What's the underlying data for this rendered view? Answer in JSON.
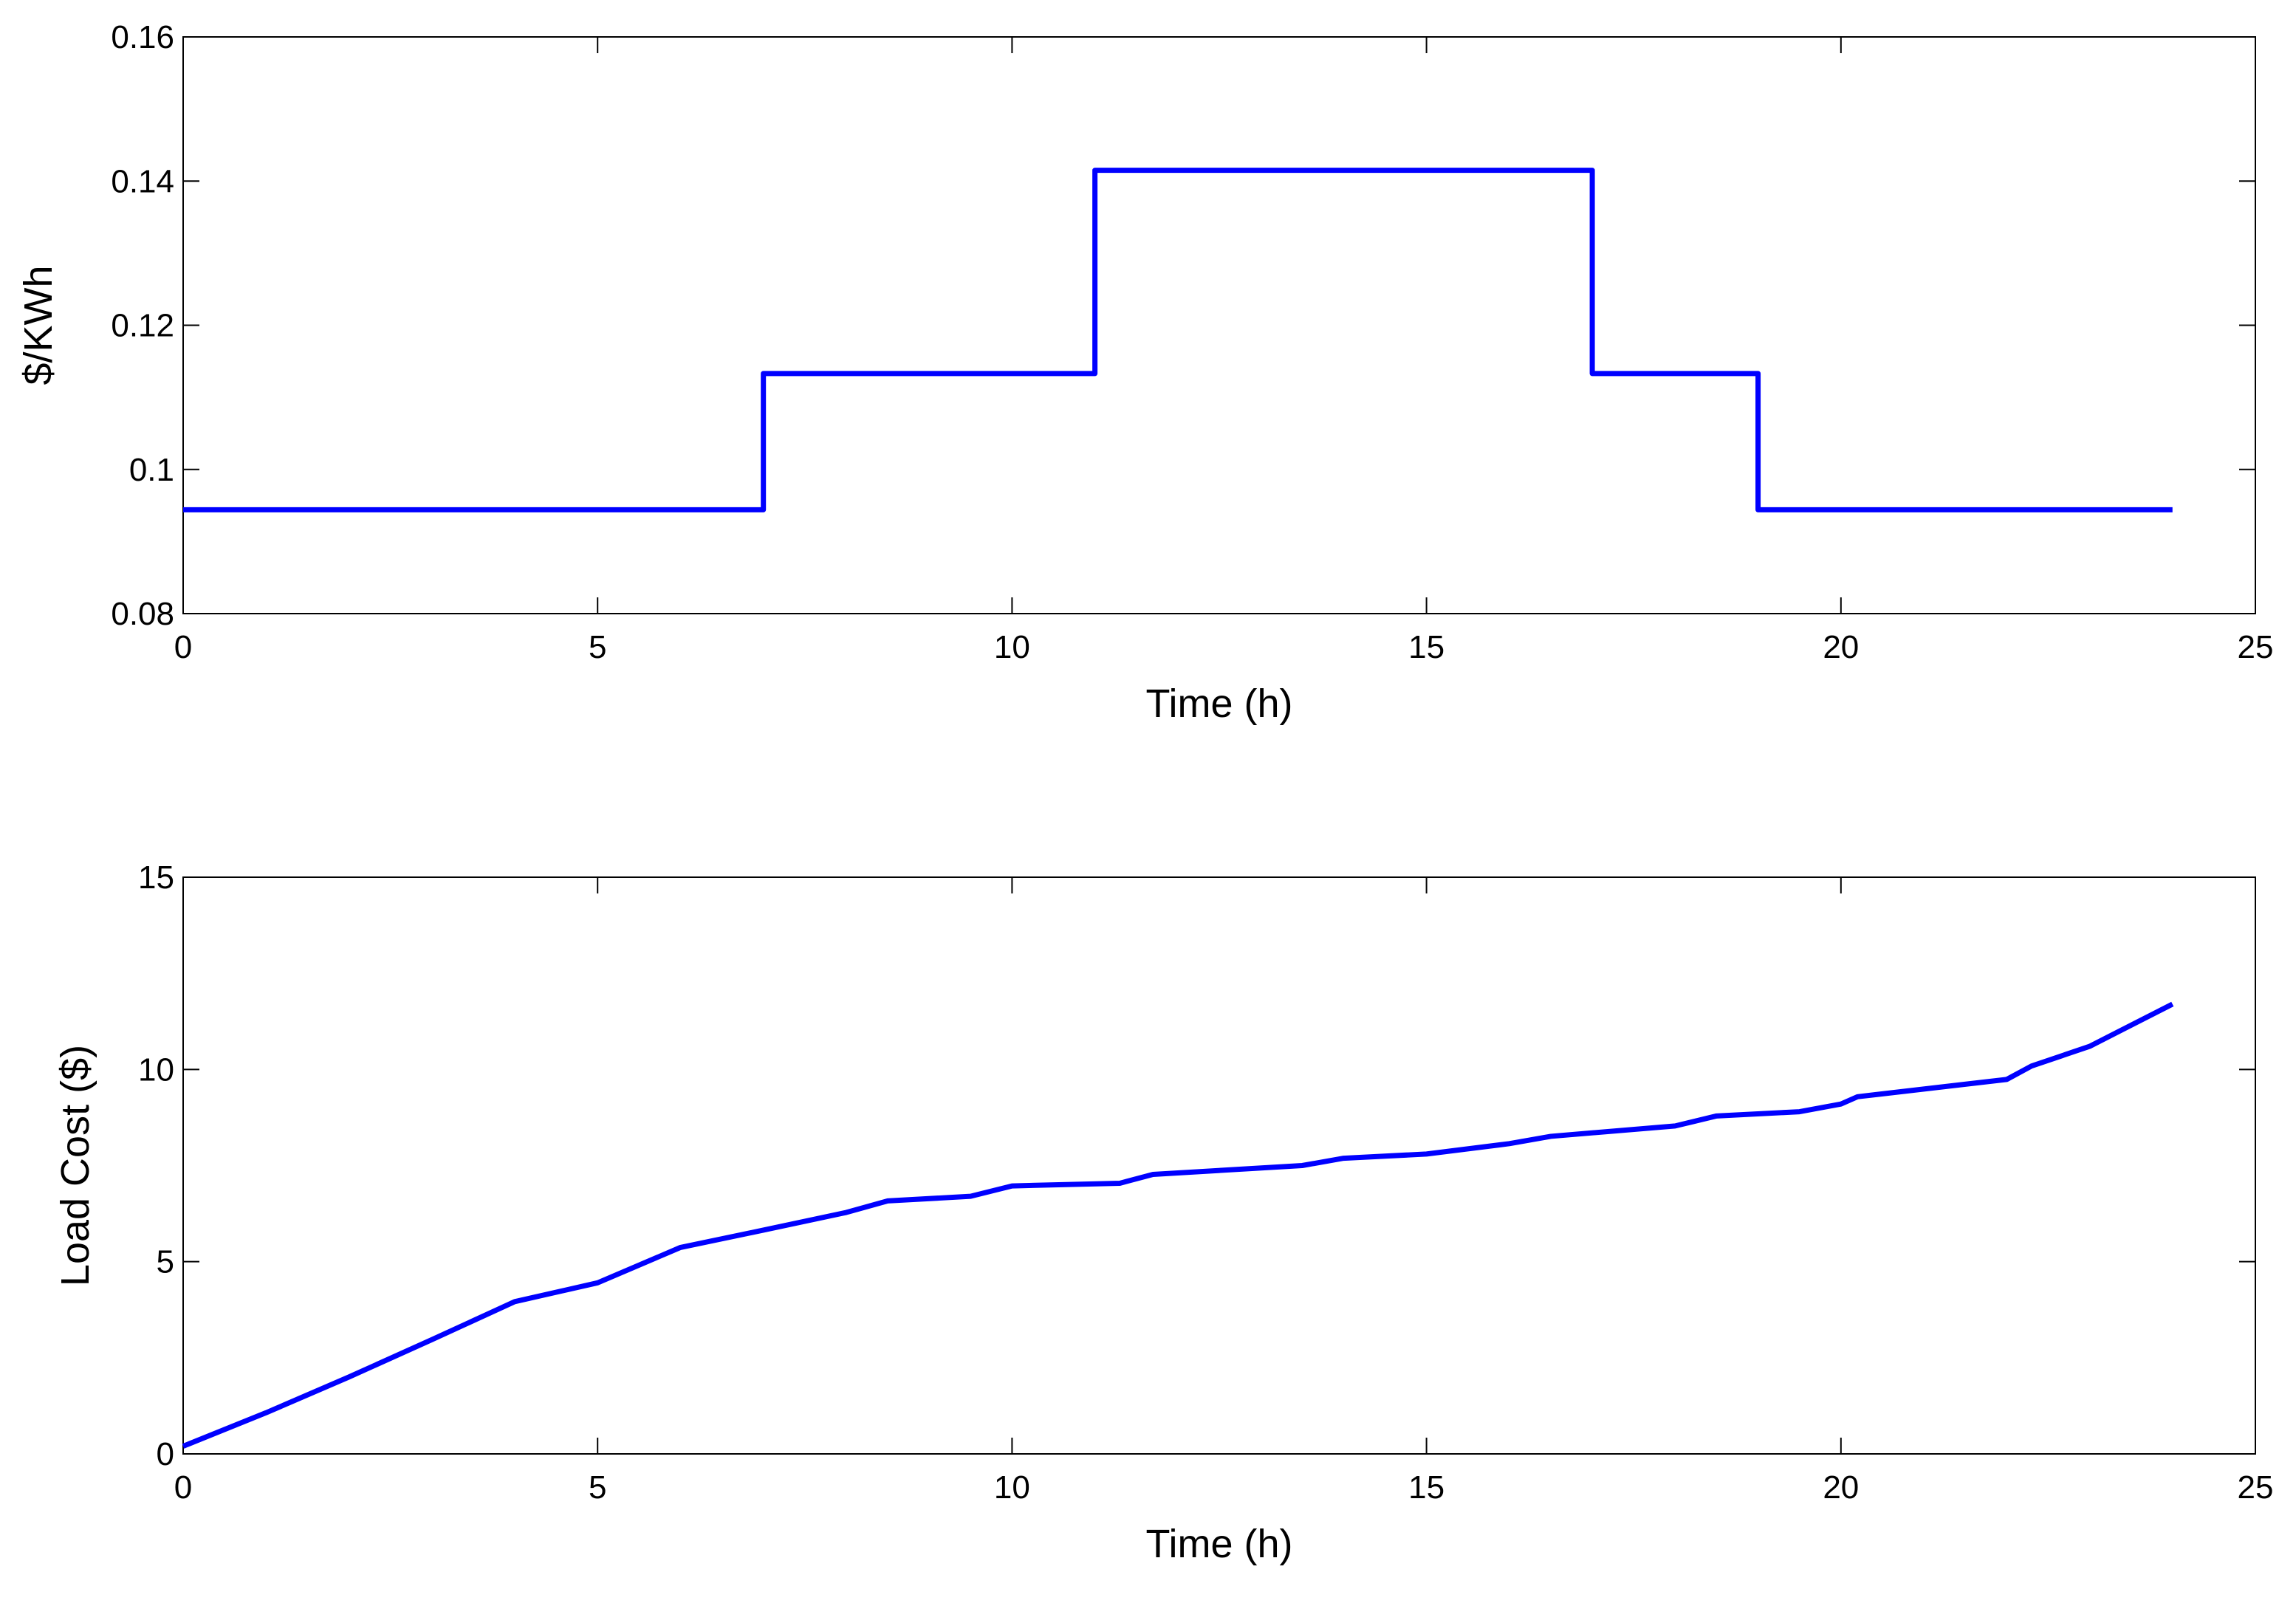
{
  "chart_data": [
    {
      "type": "line",
      "xlabel": "Time (h)",
      "ylabel": "$/KWh",
      "color": "#0000ff",
      "x": [
        0,
        7,
        7,
        11,
        11,
        17,
        17,
        19,
        19,
        24
      ],
      "values": [
        0.0944,
        0.0944,
        0.1133,
        0.1133,
        0.1415,
        0.1415,
        0.1133,
        0.1133,
        0.0944,
        0.0944
      ],
      "xlim": [
        0,
        25
      ],
      "xticks": [
        0,
        5,
        10,
        15,
        20,
        25
      ],
      "ylim": [
        0.08,
        0.16
      ],
      "yticks": [
        0.08,
        0.1,
        0.12,
        0.14,
        0.16
      ]
    },
    {
      "type": "line",
      "xlabel": "Time (h)",
      "ylabel": "Load Cost ($)",
      "color": "#0000ff",
      "x": [
        0,
        1,
        2,
        3,
        4,
        5,
        6,
        7,
        8,
        8.5,
        9.5,
        10,
        11.3,
        11.7,
        13.5,
        14,
        15,
        16,
        16.5,
        18,
        18.5,
        19.5,
        20,
        20.2,
        22,
        22.3,
        23,
        24
      ],
      "values": [
        0.2,
        1.07,
        2.0,
        2.97,
        3.96,
        4.45,
        5.37,
        5.82,
        6.28,
        6.58,
        6.7,
        6.97,
        7.04,
        7.27,
        7.5,
        7.69,
        7.8,
        8.07,
        8.26,
        8.53,
        8.79,
        8.9,
        9.1,
        9.29,
        9.74,
        10.09,
        10.6,
        11.7
      ],
      "xlim": [
        0,
        25
      ],
      "xticks": [
        0,
        5,
        10,
        15,
        20,
        25
      ],
      "ylim": [
        0,
        15
      ],
      "yticks": [
        0,
        5,
        10,
        15
      ]
    }
  ]
}
